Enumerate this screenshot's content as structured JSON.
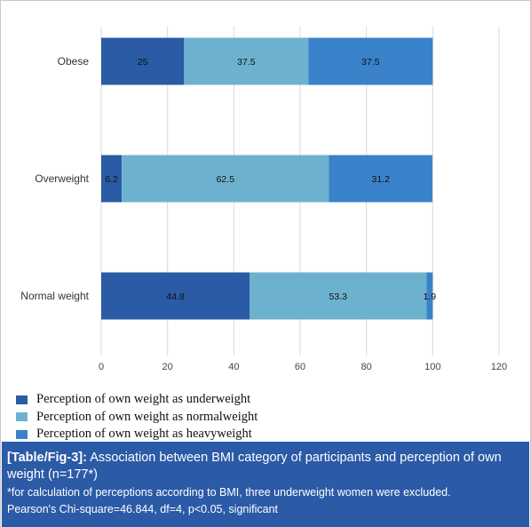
{
  "chart_data": {
    "type": "bar",
    "orientation": "horizontal",
    "stacked": true,
    "categories": [
      "Obese",
      "Overweight",
      "Normal weight"
    ],
    "series": [
      {
        "name": "Perception of own weight as underweight",
        "values": [
          25,
          6.2,
          44.8
        ],
        "color": "#2a5ba4"
      },
      {
        "name": "Perception of own weight as normalweight",
        "values": [
          37.5,
          62.5,
          53.3
        ],
        "color": "#6cb2cf"
      },
      {
        "name": "Perception of own weight as heavyweight",
        "values": [
          37.5,
          31.2,
          1.9
        ],
        "color": "#3a82c9"
      }
    ],
    "data_labels": [
      [
        "25",
        "37.5",
        "37.5"
      ],
      [
        "6.2",
        "62.5",
        "31.2"
      ],
      [
        "44.8",
        "53.3",
        "1.9"
      ]
    ],
    "xlim": [
      0,
      120
    ],
    "x_ticks": [
      "0",
      "20",
      "40",
      "60",
      "80",
      "100",
      "120"
    ],
    "grid": "vertical",
    "legend_position": "bottom-left"
  },
  "caption": {
    "ref": "[Table/Fig-3]:",
    "title": "Association between BMI category of participants and perception of own weight (n=177*)",
    "note1": "*for calculation of perceptions according to BMI, three underweight women were excluded.",
    "note2": "Pearson's Chi-square=46.844, df=4, p<0.05, significant",
    "background": "#2b5aa6"
  }
}
